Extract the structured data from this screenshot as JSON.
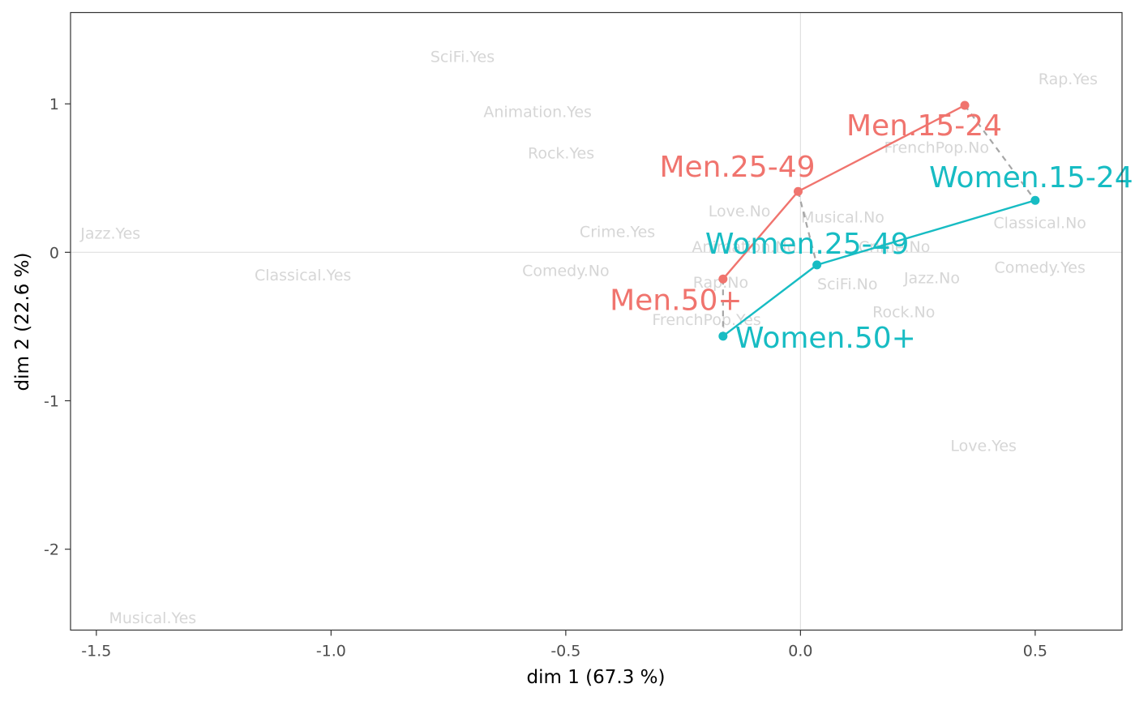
{
  "chart_data": {
    "type": "scatter",
    "xlabel": "dim 1 (67.3 %)",
    "ylabel": "dim 2 (22.6 %)",
    "xlim": [
      -1.555,
      0.685
    ],
    "ylim": [
      -2.545,
      1.615
    ],
    "x_ticks": [
      {
        "value": -1.5,
        "label": "-1.5"
      },
      {
        "value": -1.0,
        "label": "-1.0"
      },
      {
        "value": -0.5,
        "label": "-0.5"
      },
      {
        "value": 0.0,
        "label": "0.0"
      },
      {
        "value": 0.5,
        "label": "0.5"
      }
    ],
    "y_ticks": [
      {
        "value": 1,
        "label": "1"
      },
      {
        "value": 0,
        "label": "0"
      },
      {
        "value": -1,
        "label": "-1"
      },
      {
        "value": -2,
        "label": "-2"
      }
    ],
    "reference_lines": {
      "x": 0,
      "y": 0
    },
    "grid": false,
    "colors": {
      "men": "#f0746e",
      "women": "#17bcc3",
      "connector": "#a6a6a6",
      "variables": "#d6d6d6",
      "reference": "#e0e0e0"
    },
    "variables": [
      {
        "label": "SciFi.Yes",
        "x": -0.72,
        "y": 1.32
      },
      {
        "label": "Rap.Yes",
        "x": 0.57,
        "y": 1.17
      },
      {
        "label": "Animation.Yes",
        "x": -0.56,
        "y": 0.95
      },
      {
        "label": "Rock.Yes",
        "x": -0.51,
        "y": 0.67
      },
      {
        "label": "FrenchPop.No",
        "x": 0.29,
        "y": 0.71
      },
      {
        "label": "Love.No",
        "x": -0.13,
        "y": 0.28
      },
      {
        "label": "Musical.No",
        "x": 0.09,
        "y": 0.24
      },
      {
        "label": "Jazz.Yes",
        "x": -1.47,
        "y": 0.13
      },
      {
        "label": "Crime.Yes",
        "x": -0.39,
        "y": 0.14
      },
      {
        "label": "Classical.No",
        "x": 0.51,
        "y": 0.2
      },
      {
        "label": "Animation.No",
        "x": -0.12,
        "y": 0.04
      },
      {
        "label": "Crime.No",
        "x": 0.2,
        "y": 0.04
      },
      {
        "label": "Classical.Yes",
        "x": -1.06,
        "y": -0.15
      },
      {
        "label": "Comedy.No",
        "x": -0.5,
        "y": -0.12
      },
      {
        "label": "Comedy.Yes",
        "x": 0.51,
        "y": -0.1
      },
      {
        "label": "Rap.No",
        "x": -0.17,
        "y": -0.2
      },
      {
        "label": "SciFi.No",
        "x": 0.1,
        "y": -0.21
      },
      {
        "label": "Jazz.No",
        "x": 0.28,
        "y": -0.17
      },
      {
        "label": "Rock.No",
        "x": 0.22,
        "y": -0.4
      },
      {
        "label": "FrenchPop.Yes",
        "x": -0.2,
        "y": -0.45
      },
      {
        "label": "Love.Yes",
        "x": 0.39,
        "y": -1.3
      },
      {
        "label": "Musical.Yes",
        "x": -1.38,
        "y": -2.46
      }
    ],
    "series": [
      {
        "name": "Men",
        "color": "#f0746e",
        "points": [
          {
            "label": "Men.15-24",
            "x": 0.35,
            "y": 0.99
          },
          {
            "label": "Men.25-49",
            "x": -0.005,
            "y": 0.41
          },
          {
            "label": "Men.50+",
            "x": -0.165,
            "y": -0.18
          }
        ]
      },
      {
        "name": "Women",
        "color": "#17bcc3",
        "points": [
          {
            "label": "Women.15-24",
            "x": 0.5,
            "y": 0.35
          },
          {
            "label": "Women.25-49",
            "x": 0.035,
            "y": -0.085
          },
          {
            "label": "Women.50+",
            "x": -0.165,
            "y": -0.565
          }
        ]
      }
    ],
    "connectors": [
      {
        "from": "Men.15-24",
        "to": "Women.15-24"
      },
      {
        "from": "Men.25-49",
        "to": "Women.25-49"
      },
      {
        "from": "Men.50+",
        "to": "Women.50+"
      }
    ]
  }
}
